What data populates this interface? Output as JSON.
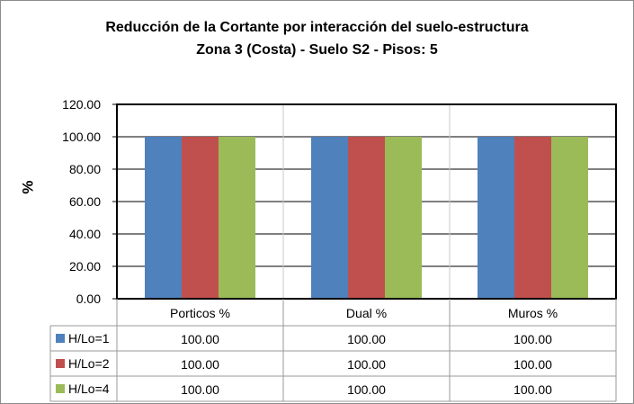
{
  "chart_data": {
    "type": "bar",
    "title": "Reducción de la Cortante por interacción del suelo-estructura",
    "subtitle": "Zona 3 (Costa) - Suelo S2 - Pisos: 5",
    "ylabel": "%",
    "xlabel": "",
    "ylim": [
      0,
      120
    ],
    "yticks": [
      "0.00",
      "20.00",
      "40.00",
      "60.00",
      "80.00",
      "100.00",
      "120.00"
    ],
    "categories": [
      "Porticos %",
      "Dual  %",
      "Muros %"
    ],
    "series": [
      {
        "name": "H/Lo=1",
        "color": "#4f81bd",
        "values": [
          100,
          100,
          100
        ],
        "labels": [
          "100.00",
          "100.00",
          "100.00"
        ]
      },
      {
        "name": "H/Lo=2",
        "color": "#c0504d",
        "values": [
          100,
          100,
          100
        ],
        "labels": [
          "100.00",
          "100.00",
          "100.00"
        ]
      },
      {
        "name": "H/Lo=4",
        "color": "#9bbb59",
        "values": [
          100,
          100,
          100
        ],
        "labels": [
          "100.00",
          "100.00",
          "100.00"
        ]
      }
    ],
    "grid": true,
    "legend": "data-table"
  }
}
